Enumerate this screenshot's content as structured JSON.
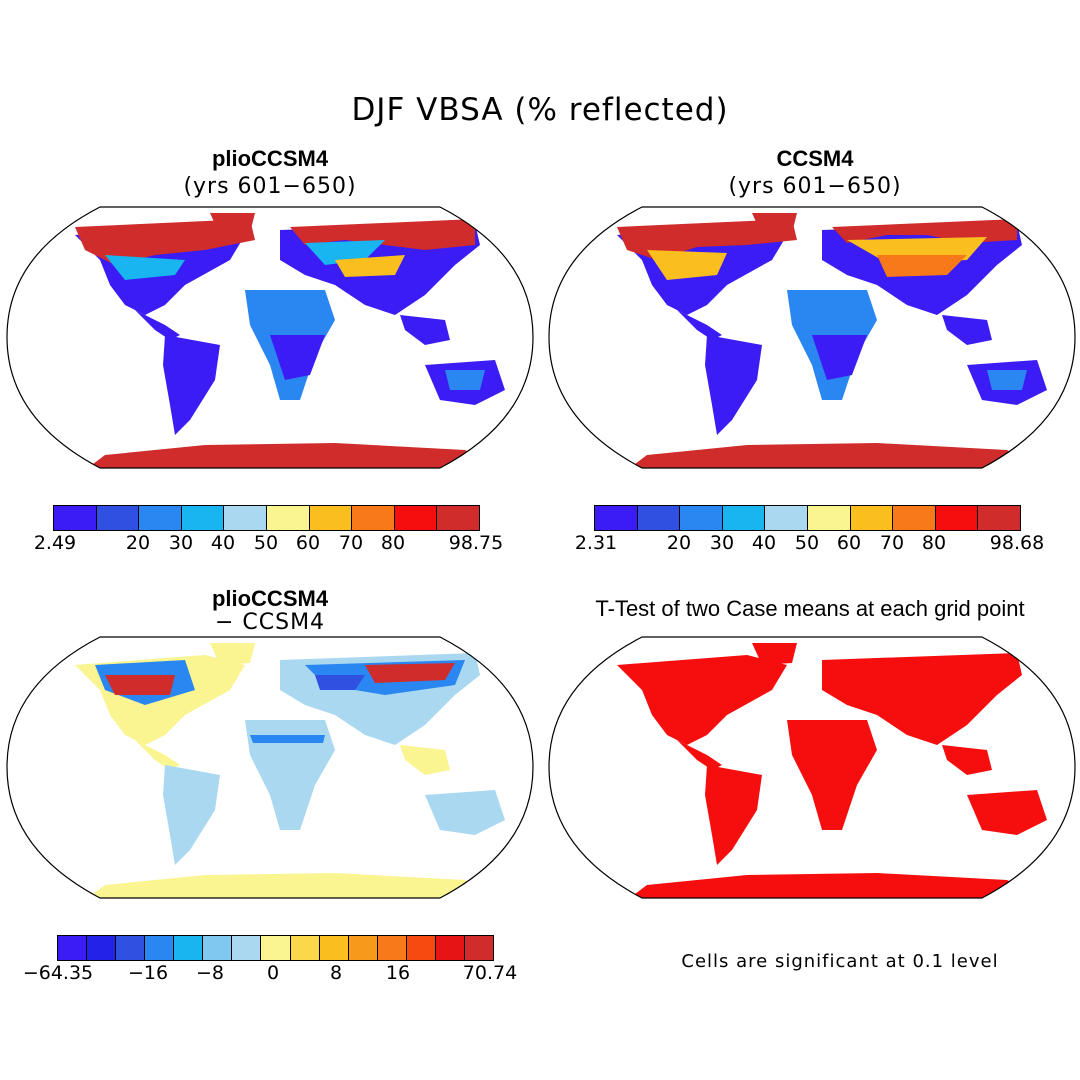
{
  "figure": {
    "title": "DJF VBSA (% reflected)"
  },
  "panels": [
    {
      "id": "plio",
      "title": "plioCCSM4",
      "subtitle": "(yrs 601−650)",
      "colorbar": {
        "colors": [
          "#3b1cf5",
          "#2f50e0",
          "#2a86f0",
          "#18b5f0",
          "#a9d8f0",
          "#faf591",
          "#fbbe1f",
          "#f7791a",
          "#f60e0e",
          "#d02c2c"
        ],
        "ticks": [
          "2.49",
          "20",
          "30",
          "40",
          "50",
          "60",
          "70",
          "80",
          "98.75"
        ]
      },
      "map_colors": {
        "ocean": "#ffffff",
        "land_low": "#3b1cf5",
        "land_mid": "#2a86f0",
        "snow": "#d02c2c",
        "transition": "#fbbe1f"
      }
    },
    {
      "id": "ccsm",
      "title": "CCSM4",
      "subtitle": "(yrs 601−650)",
      "colorbar": {
        "colors": [
          "#3b1cf5",
          "#2f50e0",
          "#2a86f0",
          "#18b5f0",
          "#a9d8f0",
          "#faf591",
          "#fbbe1f",
          "#f7791a",
          "#f60e0e",
          "#d02c2c"
        ],
        "ticks": [
          "2.31",
          "20",
          "30",
          "40",
          "50",
          "60",
          "70",
          "80",
          "98.68"
        ]
      }
    },
    {
      "id": "diff",
      "title": "plioCCSM4",
      "subtitle": "− CCSM4",
      "colorbar": {
        "colors": [
          "#3b1cf5",
          "#2222e8",
          "#2f50e0",
          "#2a86f0",
          "#18b5f0",
          "#80c8f0",
          "#a9d8f0",
          "#faf591",
          "#fbd84a",
          "#fbbe1f",
          "#f7991a",
          "#f7791a",
          "#f64a0e",
          "#e61414",
          "#d02c2c"
        ],
        "ticks": [
          "−64.35",
          "−16",
          "−8",
          "0",
          "8",
          "16",
          "70.74"
        ]
      }
    },
    {
      "id": "ttest",
      "title": "T-Test of two Case means at each grid point",
      "note": "Cells are significant at 0.1 level",
      "sig_color": "#f60e0e"
    }
  ]
}
